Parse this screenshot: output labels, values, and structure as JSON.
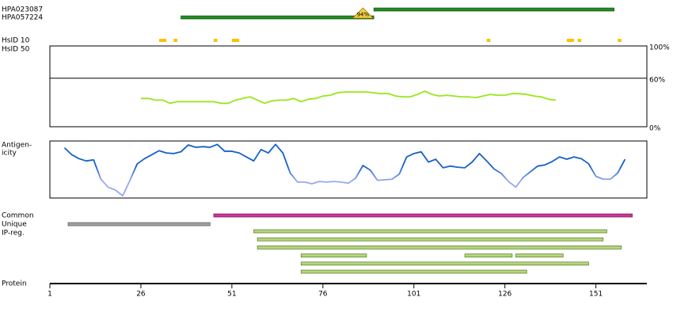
{
  "chart_data": {
    "type": "protein-track",
    "xlabel": "Protein",
    "xlim": [
      1,
      165
    ],
    "xticks": [
      1,
      26,
      51,
      76,
      101,
      126,
      151
    ],
    "antibodies": [
      {
        "name": "HPA023087",
        "range": [
          90,
          156
        ],
        "color": "#228b22"
      },
      {
        "name": "HPA057224",
        "range": [
          37,
          90
        ],
        "color": "#228b22"
      }
    ],
    "overlap": {
      "label": "94%",
      "position": 87,
      "color": "#f5d040"
    },
    "hsid": [
      {
        "name": "HsID 10",
        "ranges": [
          [
            31,
            33
          ],
          [
            35,
            36
          ],
          [
            46,
            47
          ],
          [
            51,
            53
          ],
          [
            121,
            122
          ],
          [
            143,
            145
          ],
          [
            146,
            147
          ],
          [
            157,
            158
          ]
        ],
        "color": "#ffc000"
      },
      {
        "name": "HsID 50",
        "ranges": [],
        "color": "#ffc000"
      }
    ],
    "similarity": {
      "x": [
        26,
        28,
        30,
        32,
        34,
        36,
        38,
        40,
        42,
        44,
        46,
        48,
        50,
        52,
        54,
        56,
        58,
        60,
        62,
        64,
        66,
        68,
        70,
        72,
        74,
        76,
        78,
        80,
        82,
        84,
        86,
        88,
        90,
        92,
        94,
        96,
        98,
        100,
        102,
        104,
        106,
        108,
        110,
        112,
        114,
        116,
        118,
        120,
        122,
        124,
        126,
        128,
        130,
        132,
        134,
        136,
        138,
        140
      ],
      "values": [
        35,
        35,
        33,
        33,
        29,
        31,
        31,
        31,
        31,
        31,
        31,
        29,
        29,
        33,
        35,
        37,
        33,
        29,
        32,
        33,
        33,
        35,
        31,
        34,
        35,
        38,
        39,
        42,
        43,
        43,
        43,
        43,
        42,
        41,
        41,
        38,
        37,
        37,
        40,
        44,
        40,
        38,
        39,
        38,
        37,
        37,
        36,
        38,
        40,
        39,
        39,
        41,
        41,
        40,
        38,
        37,
        34,
        33
      ],
      "ylim": [
        0,
        100
      ],
      "yticks": [
        {
          "value": 100,
          "label": "100%"
        },
        {
          "value": 60,
          "label": "60%"
        },
        {
          "value": 0,
          "label": "0%"
        }
      ],
      "grid": true,
      "color": "#99e619"
    },
    "antigenicity": {
      "label_lines": [
        "Antigen-",
        "icity"
      ],
      "x": [
        5,
        7,
        9,
        11,
        13,
        15,
        17,
        19,
        21,
        23,
        25,
        27,
        29,
        31,
        33,
        35,
        37,
        39,
        41,
        43,
        45,
        47,
        49,
        51,
        53,
        55,
        57,
        59,
        61,
        63,
        65,
        67,
        69,
        71,
        73,
        75,
        77,
        79,
        81,
        83,
        85,
        87,
        89,
        91,
        93,
        95,
        97,
        99,
        101,
        103,
        105,
        107,
        109,
        111,
        113,
        115,
        117,
        119,
        121,
        123,
        125,
        127,
        129,
        131,
        133,
        135,
        137,
        139,
        141,
        143,
        145,
        147,
        149,
        151,
        153,
        155,
        157,
        159
      ],
      "values": [
        88,
        76,
        69,
        65,
        67,
        33,
        19,
        14,
        4,
        31,
        60,
        69,
        76,
        83,
        79,
        78,
        81,
        93,
        89,
        90,
        89,
        94,
        82,
        82,
        79,
        72,
        65,
        85,
        79,
        94,
        79,
        44,
        28,
        28,
        25,
        29,
        28,
        29,
        28,
        26,
        35,
        57,
        49,
        31,
        32,
        33,
        42,
        72,
        78,
        81,
        63,
        68,
        53,
        56,
        54,
        53,
        63,
        78,
        65,
        51,
        43,
        29,
        19,
        36,
        46,
        56,
        58,
        64,
        72,
        68,
        72,
        69,
        60,
        38,
        33,
        33,
        44,
        68
      ],
      "ylim": [
        0,
        100
      ],
      "color": "#1560c8",
      "low_color": "#98a8f0"
    },
    "features": [
      {
        "name": "Common",
        "rows": [
          [
            [
              46,
              161
            ]
          ]
        ],
        "color": "#cc3399",
        "edge": "#7a1a5a"
      },
      {
        "name": "Unique",
        "rows": [
          [
            [
              6,
              45
            ]
          ]
        ],
        "color": "#a0a0a0",
        "edge": "#555555"
      },
      {
        "name": "IP-reg.",
        "rows": [
          [
            [
              57,
              154
            ]
          ],
          [
            [
              58,
              153
            ]
          ],
          [
            [
              58,
              158
            ]
          ],
          [
            [
              70,
              88
            ],
            [
              115,
              128
            ],
            [
              129,
              142
            ]
          ],
          [
            [
              70,
              149
            ]
          ],
          [
            [
              70,
              132
            ]
          ]
        ],
        "color": "#b4d47c",
        "edge": "#5a7a2a"
      }
    ]
  }
}
